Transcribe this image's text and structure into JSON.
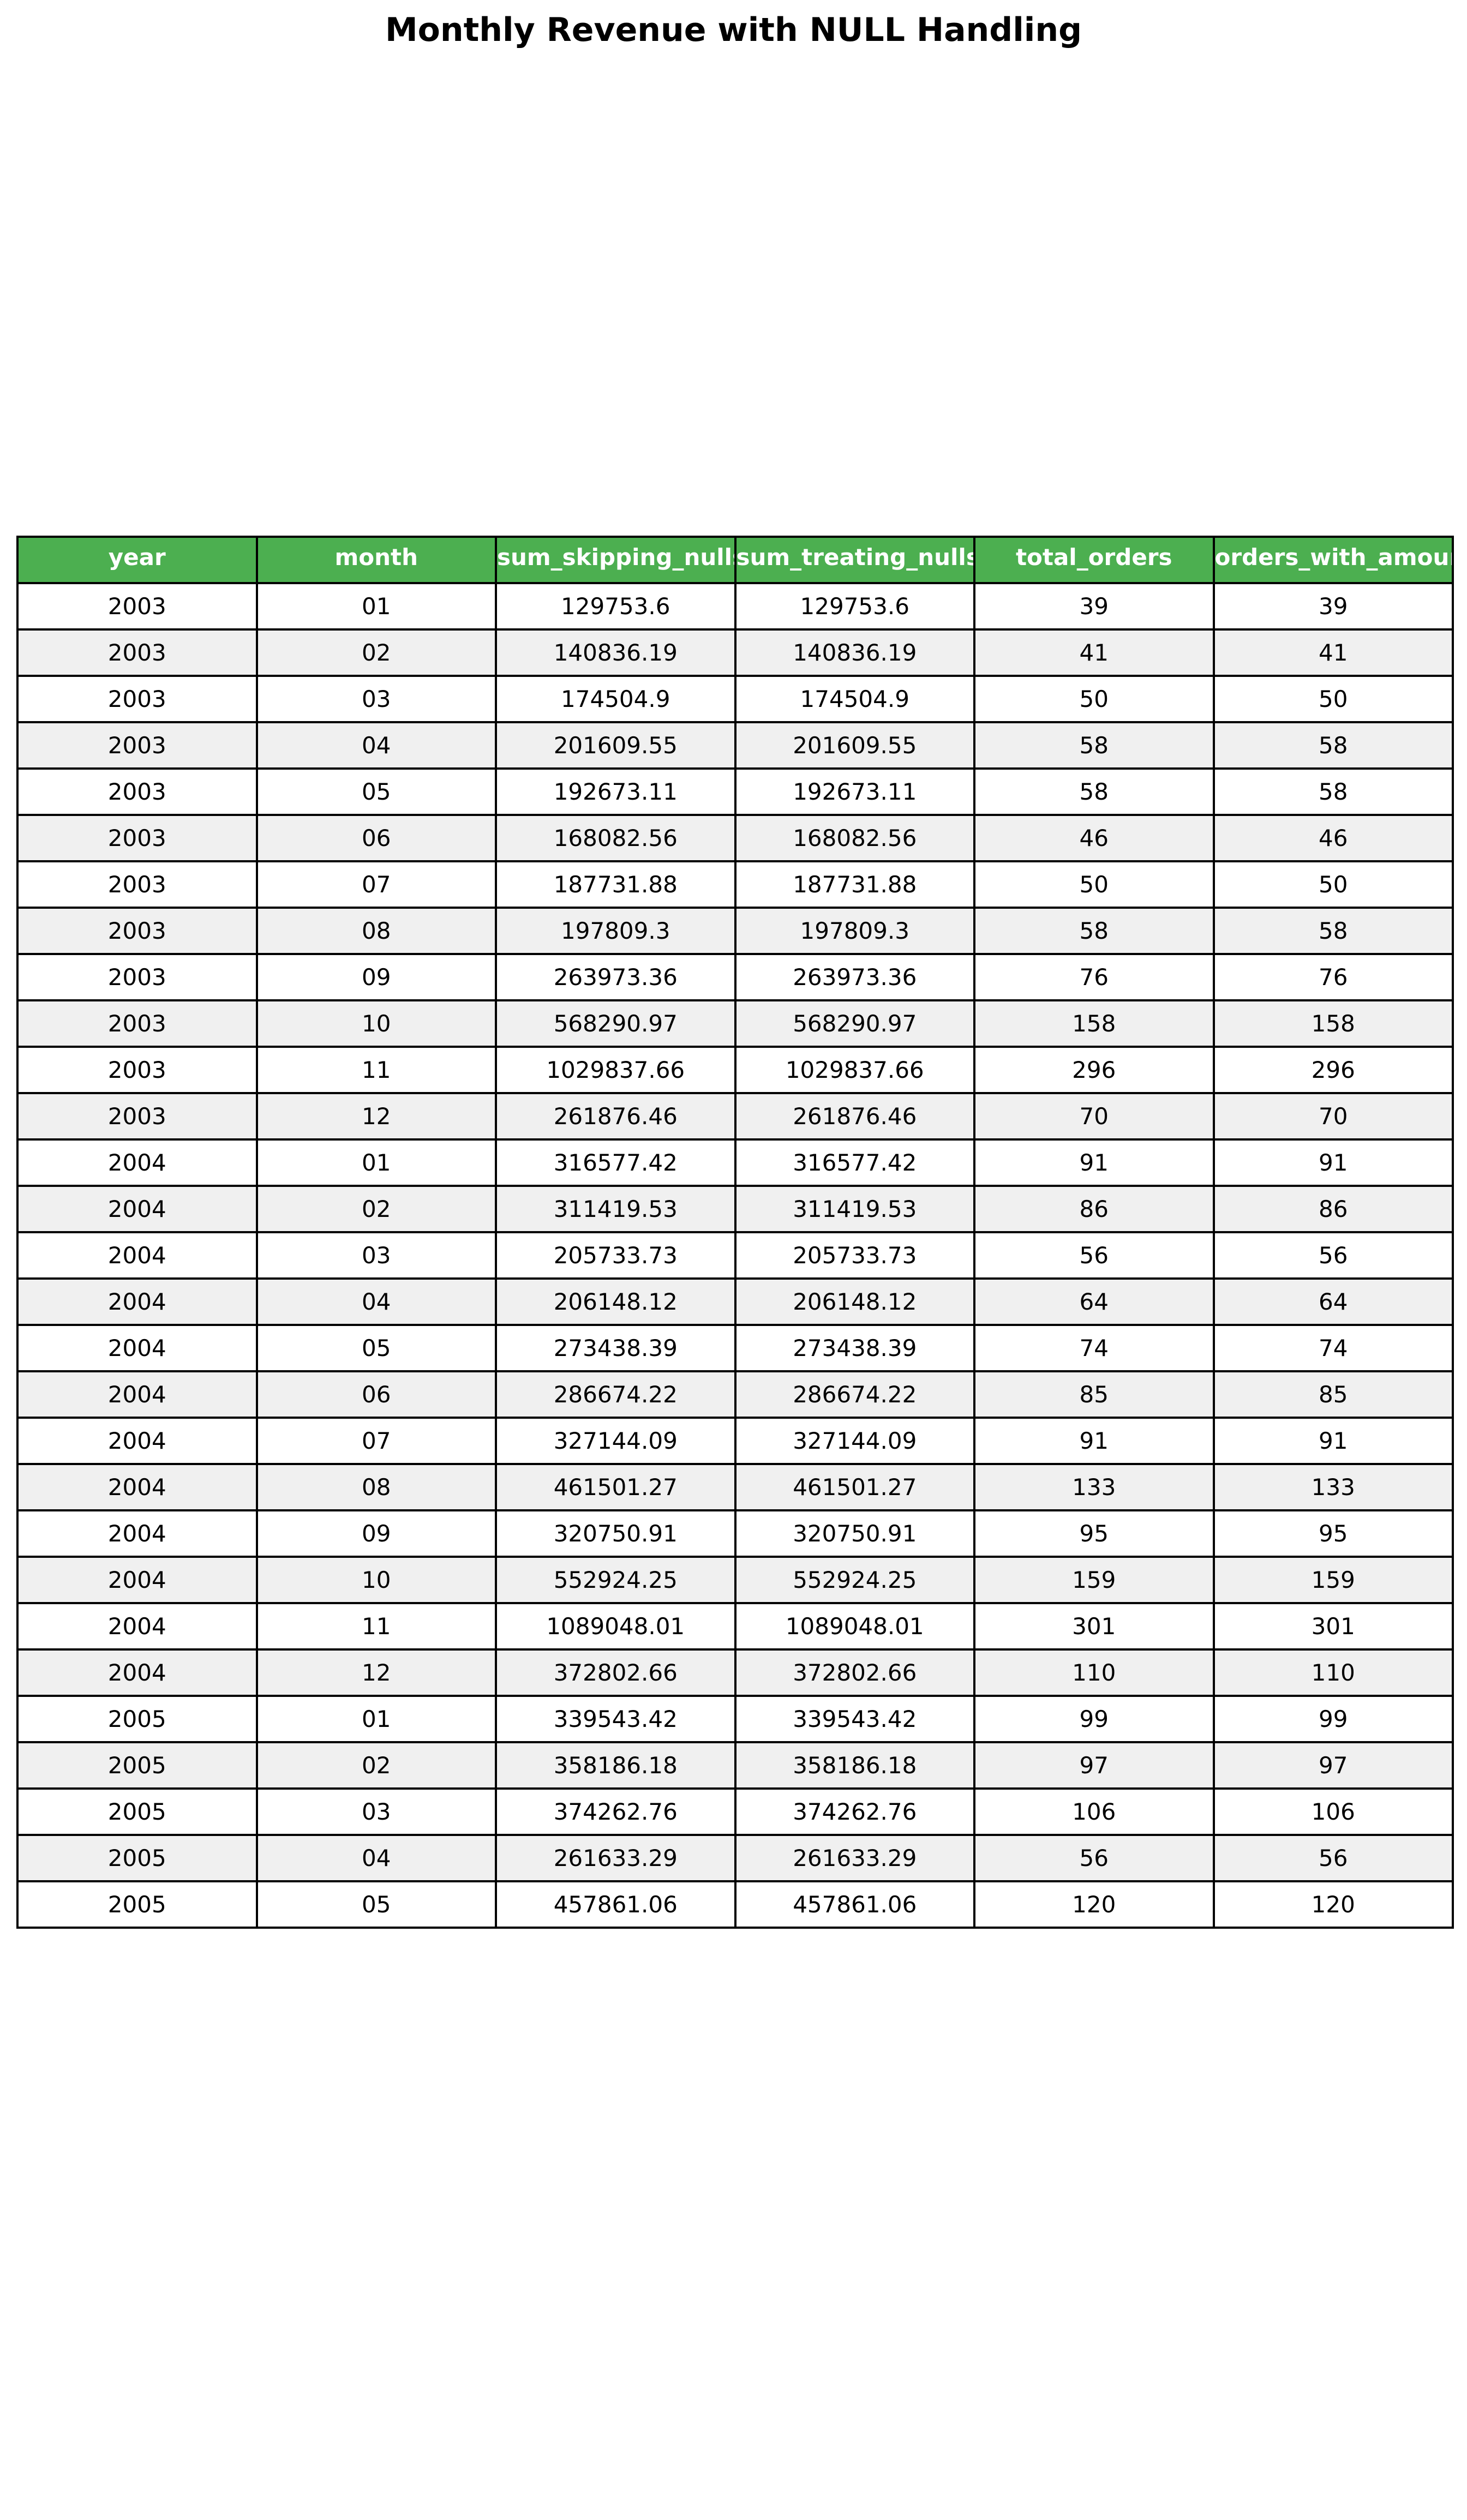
{
  "chart_data": {
    "type": "table",
    "title": "Monthly Revenue with NULL Handling",
    "columns": [
      "year",
      "month",
      "sum_skipping_nulls",
      "sum_treating_nulls_as_zero",
      "total_orders",
      "orders_with_amount"
    ],
    "rows": [
      [
        "2003",
        "01",
        "129753.6",
        "129753.6",
        "39",
        "39"
      ],
      [
        "2003",
        "02",
        "140836.19",
        "140836.19",
        "41",
        "41"
      ],
      [
        "2003",
        "03",
        "174504.9",
        "174504.9",
        "50",
        "50"
      ],
      [
        "2003",
        "04",
        "201609.55",
        "201609.55",
        "58",
        "58"
      ],
      [
        "2003",
        "05",
        "192673.11",
        "192673.11",
        "58",
        "58"
      ],
      [
        "2003",
        "06",
        "168082.56",
        "168082.56",
        "46",
        "46"
      ],
      [
        "2003",
        "07",
        "187731.88",
        "187731.88",
        "50",
        "50"
      ],
      [
        "2003",
        "08",
        "197809.3",
        "197809.3",
        "58",
        "58"
      ],
      [
        "2003",
        "09",
        "263973.36",
        "263973.36",
        "76",
        "76"
      ],
      [
        "2003",
        "10",
        "568290.97",
        "568290.97",
        "158",
        "158"
      ],
      [
        "2003",
        "11",
        "1029837.66",
        "1029837.66",
        "296",
        "296"
      ],
      [
        "2003",
        "12",
        "261876.46",
        "261876.46",
        "70",
        "70"
      ],
      [
        "2004",
        "01",
        "316577.42",
        "316577.42",
        "91",
        "91"
      ],
      [
        "2004",
        "02",
        "311419.53",
        "311419.53",
        "86",
        "86"
      ],
      [
        "2004",
        "03",
        "205733.73",
        "205733.73",
        "56",
        "56"
      ],
      [
        "2004",
        "04",
        "206148.12",
        "206148.12",
        "64",
        "64"
      ],
      [
        "2004",
        "05",
        "273438.39",
        "273438.39",
        "74",
        "74"
      ],
      [
        "2004",
        "06",
        "286674.22",
        "286674.22",
        "85",
        "85"
      ],
      [
        "2004",
        "07",
        "327144.09",
        "327144.09",
        "91",
        "91"
      ],
      [
        "2004",
        "08",
        "461501.27",
        "461501.27",
        "133",
        "133"
      ],
      [
        "2004",
        "09",
        "320750.91",
        "320750.91",
        "95",
        "95"
      ],
      [
        "2004",
        "10",
        "552924.25",
        "552924.25",
        "159",
        "159"
      ],
      [
        "2004",
        "11",
        "1089048.01",
        "1089048.01",
        "301",
        "301"
      ],
      [
        "2004",
        "12",
        "372802.66",
        "372802.66",
        "110",
        "110"
      ],
      [
        "2005",
        "01",
        "339543.42",
        "339543.42",
        "99",
        "99"
      ],
      [
        "2005",
        "02",
        "358186.18",
        "358186.18",
        "97",
        "97"
      ],
      [
        "2005",
        "03",
        "374262.76",
        "374262.76",
        "106",
        "106"
      ],
      [
        "2005",
        "04",
        "261633.29",
        "261633.29",
        "56",
        "56"
      ],
      [
        "2005",
        "05",
        "457861.06",
        "457861.06",
        "120",
        "120"
      ]
    ]
  },
  "colors": {
    "header_background": "#4caf50",
    "header_text": "#ffffff",
    "striped_row": "#f0f0f0",
    "plain_row": "#ffffff",
    "border": "#000000"
  }
}
